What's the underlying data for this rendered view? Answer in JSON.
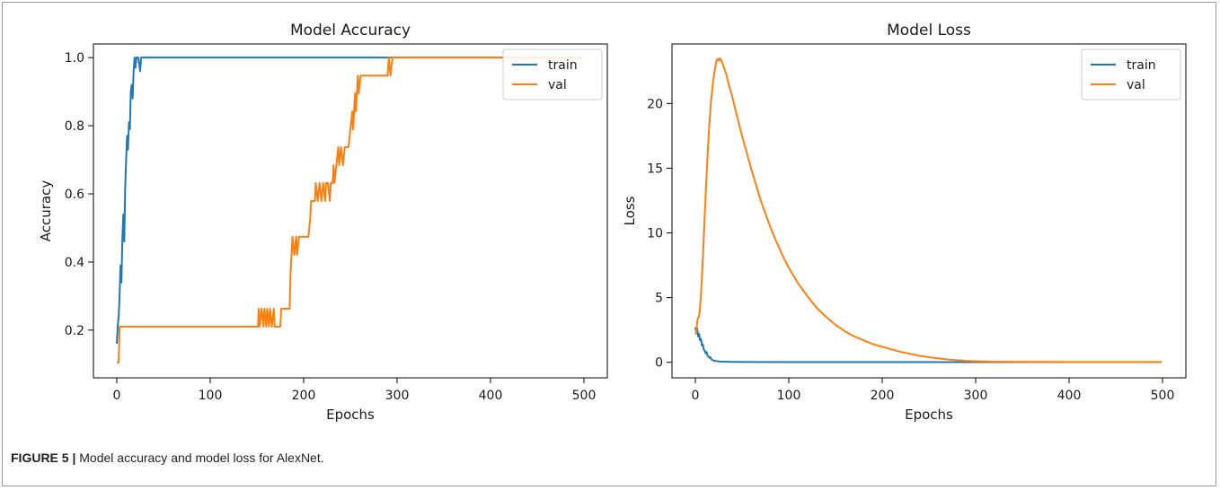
{
  "caption": {
    "label": "FIGURE 5 |",
    "text": " Model accuracy and model loss for AlexNet."
  },
  "colors": {
    "train": "#1f77b4",
    "val": "#ff7f0e"
  },
  "chart_data": [
    {
      "type": "line",
      "title": "Model Accuracy",
      "xlabel": "Epochs",
      "ylabel": "Accuracy",
      "xlim": [
        -25,
        525
      ],
      "ylim": [
        0.06,
        1.04
      ],
      "xticks": [
        0,
        100,
        200,
        300,
        400,
        500
      ],
      "yticks": [
        0.2,
        0.4,
        0.6,
        0.8,
        1.0
      ],
      "ytick_labels": [
        "0.2",
        "0.4",
        "0.6",
        "0.8",
        "1.0"
      ],
      "legend": "top-right",
      "grid": false,
      "series": [
        {
          "name": "train",
          "points": [
            [
              0,
              0.16
            ],
            [
              1,
              0.21
            ],
            [
              2,
              0.24
            ],
            [
              3,
              0.3
            ],
            [
              4,
              0.39
            ],
            [
              5,
              0.34
            ],
            [
              6,
              0.47
            ],
            [
              7,
              0.54
            ],
            [
              8,
              0.46
            ],
            [
              9,
              0.62
            ],
            [
              10,
              0.7
            ],
            [
              11,
              0.77
            ],
            [
              12,
              0.73
            ],
            [
              13,
              0.81
            ],
            [
              14,
              0.79
            ],
            [
              15,
              0.9
            ],
            [
              16,
              0.92
            ],
            [
              17,
              0.88
            ],
            [
              18,
              0.96
            ],
            [
              19,
              1.0
            ],
            [
              20,
              0.97
            ],
            [
              21,
              1.0
            ],
            [
              22,
              1.0
            ],
            [
              23,
              1.0
            ],
            [
              24,
              0.98
            ],
            [
              25,
              0.96
            ],
            [
              26,
              1.0
            ],
            [
              27,
              1.0
            ],
            [
              30,
              1.0
            ],
            [
              100,
              1.0
            ],
            [
              200,
              1.0
            ],
            [
              300,
              1.0
            ],
            [
              400,
              1.0
            ],
            [
              499,
              1.0
            ]
          ]
        },
        {
          "name": "val",
          "points": [
            [
              0,
              0.105
            ],
            [
              1,
              0.105
            ],
            [
              2,
              0.105
            ],
            [
              3,
              0.21
            ],
            [
              10,
              0.21
            ],
            [
              50,
              0.21
            ],
            [
              100,
              0.21
            ],
            [
              150,
              0.21
            ],
            [
              151,
              0.21
            ],
            [
              152,
              0.263
            ],
            [
              153,
              0.21
            ],
            [
              155,
              0.263
            ],
            [
              157,
              0.21
            ],
            [
              158,
              0.263
            ],
            [
              160,
              0.21
            ],
            [
              161,
              0.263
            ],
            [
              163,
              0.21
            ],
            [
              164,
              0.263
            ],
            [
              166,
              0.21
            ],
            [
              168,
              0.263
            ],
            [
              169,
              0.21
            ],
            [
              170,
              0.21
            ],
            [
              175,
              0.21
            ],
            [
              176,
              0.263
            ],
            [
              185,
              0.263
            ],
            [
              186,
              0.368
            ],
            [
              187,
              0.421
            ],
            [
              188,
              0.474
            ],
            [
              190,
              0.421
            ],
            [
              192,
              0.474
            ],
            [
              193,
              0.421
            ],
            [
              195,
              0.474
            ],
            [
              205,
              0.474
            ],
            [
              207,
              0.526
            ],
            [
              208,
              0.579
            ],
            [
              212,
              0.579
            ],
            [
              213,
              0.632
            ],
            [
              215,
              0.579
            ],
            [
              217,
              0.632
            ],
            [
              219,
              0.579
            ],
            [
              221,
              0.632
            ],
            [
              223,
              0.579
            ],
            [
              224,
              0.632
            ],
            [
              226,
              0.632
            ],
            [
              228,
              0.579
            ],
            [
              229,
              0.632
            ],
            [
              231,
              0.632
            ],
            [
              232,
              0.684
            ],
            [
              233,
              0.632
            ],
            [
              235,
              0.684
            ],
            [
              237,
              0.737
            ],
            [
              238,
              0.684
            ],
            [
              240,
              0.737
            ],
            [
              242,
              0.684
            ],
            [
              244,
              0.737
            ],
            [
              248,
              0.737
            ],
            [
              250,
              0.789
            ],
            [
              252,
              0.842
            ],
            [
              253,
              0.789
            ],
            [
              255,
              0.895
            ],
            [
              256,
              0.842
            ],
            [
              258,
              0.947
            ],
            [
              259,
              0.895
            ],
            [
              261,
              0.947
            ],
            [
              290,
              0.947
            ],
            [
              291,
              1.0
            ],
            [
              293,
              0.947
            ],
            [
              295,
              1.0
            ],
            [
              297,
              1.0
            ],
            [
              300,
              1.0
            ],
            [
              400,
              1.0
            ],
            [
              499,
              1.0
            ]
          ]
        }
      ]
    },
    {
      "type": "line",
      "title": "Model Loss",
      "xlabel": "Epochs",
      "ylabel": "Loss",
      "xlim": [
        -25,
        525
      ],
      "ylim": [
        -1.2,
        24.6
      ],
      "xticks": [
        0,
        100,
        200,
        300,
        400,
        500
      ],
      "yticks": [
        0,
        5,
        10,
        15,
        20
      ],
      "ytick_labels": [
        "0",
        "5",
        "10",
        "15",
        "20"
      ],
      "legend": "top-right",
      "grid": false,
      "series": [
        {
          "name": "train",
          "points": [
            [
              0,
              2.7
            ],
            [
              1,
              2.3
            ],
            [
              2,
              2.6
            ],
            [
              3,
              2.0
            ],
            [
              4,
              2.2
            ],
            [
              5,
              1.7
            ],
            [
              6,
              1.8
            ],
            [
              7,
              1.3
            ],
            [
              8,
              1.4
            ],
            [
              9,
              1.0
            ],
            [
              10,
              0.9
            ],
            [
              11,
              0.7
            ],
            [
              12,
              0.8
            ],
            [
              13,
              0.5
            ],
            [
              14,
              0.45
            ],
            [
              15,
              0.35
            ],
            [
              16,
              0.4
            ],
            [
              17,
              0.25
            ],
            [
              18,
              0.2
            ],
            [
              19,
              0.15
            ],
            [
              20,
              0.12
            ],
            [
              22,
              0.1
            ],
            [
              25,
              0.07
            ],
            [
              30,
              0.05
            ],
            [
              40,
              0.03
            ],
            [
              60,
              0.02
            ],
            [
              100,
              0.01
            ],
            [
              200,
              0.01
            ],
            [
              300,
              0.01
            ],
            [
              400,
              0.01
            ],
            [
              499,
              0.01
            ]
          ]
        },
        {
          "name": "val",
          "points": [
            [
              0,
              2.3
            ],
            [
              1,
              2.2
            ],
            [
              2,
              3.2
            ],
            [
              3,
              3.4
            ],
            [
              4,
              3.6
            ],
            [
              5,
              4.2
            ],
            [
              6,
              5.2
            ],
            [
              7,
              6.5
            ],
            [
              8,
              8.0
            ],
            [
              9,
              9.6
            ],
            [
              10,
              11.2
            ],
            [
              11,
              12.8
            ],
            [
              12,
              14.4
            ],
            [
              13,
              15.8
            ],
            [
              14,
              17.2
            ],
            [
              15,
              18.4
            ],
            [
              16,
              19.4
            ],
            [
              17,
              20.3
            ],
            [
              18,
              21.0
            ],
            [
              19,
              21.7
            ],
            [
              20,
              22.2
            ],
            [
              21,
              22.7
            ],
            [
              22,
              23.1
            ],
            [
              23,
              23.4
            ],
            [
              24,
              23.4
            ],
            [
              25,
              23.3
            ],
            [
              26,
              23.5
            ],
            [
              27,
              23.4
            ],
            [
              28,
              23.3
            ],
            [
              30,
              22.9
            ],
            [
              33,
              22.3
            ],
            [
              36,
              21.4
            ],
            [
              40,
              20.4
            ],
            [
              45,
              18.9
            ],
            [
              50,
              17.5
            ],
            [
              55,
              16.2
            ],
            [
              60,
              14.9
            ],
            [
              65,
              13.7
            ],
            [
              70,
              12.5
            ],
            [
              75,
              11.5
            ],
            [
              80,
              10.5
            ],
            [
              85,
              9.6
            ],
            [
              90,
              8.8
            ],
            [
              95,
              8.0
            ],
            [
              100,
              7.3
            ],
            [
              110,
              6.1
            ],
            [
              120,
              5.1
            ],
            [
              130,
              4.2
            ],
            [
              140,
              3.5
            ],
            [
              150,
              2.9
            ],
            [
              160,
              2.4
            ],
            [
              170,
              2.0
            ],
            [
              180,
              1.7
            ],
            [
              190,
              1.4
            ],
            [
              200,
              1.2
            ],
            [
              210,
              1.0
            ],
            [
              220,
              0.8
            ],
            [
              230,
              0.65
            ],
            [
              240,
              0.5
            ],
            [
              250,
              0.4
            ],
            [
              260,
              0.3
            ],
            [
              270,
              0.22
            ],
            [
              280,
              0.16
            ],
            [
              290,
              0.11
            ],
            [
              300,
              0.08
            ],
            [
              320,
              0.05
            ],
            [
              350,
              0.03
            ],
            [
              400,
              0.02
            ],
            [
              450,
              0.02
            ],
            [
              499,
              0.02
            ]
          ]
        }
      ]
    }
  ]
}
